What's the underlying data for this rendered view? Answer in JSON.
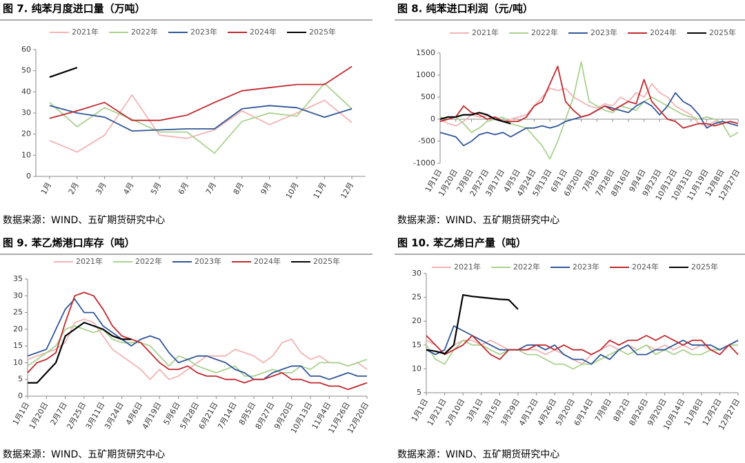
{
  "chart_data": [
    {
      "type": "line",
      "title": "图 7. 纯苯月度进口量（万吨）",
      "source": "数据来源：WIND、五矿期货研究中心",
      "categories": [
        "1月",
        "2月",
        "3月",
        "4月",
        "5月",
        "6月",
        "7月",
        "8月",
        "9月",
        "10月",
        "11月",
        "12月"
      ],
      "ylim": [
        0,
        60
      ],
      "yticks": [
        0,
        10,
        20,
        30,
        40,
        50,
        60
      ],
      "grid": false,
      "legend": "top",
      "series": [
        {
          "name": "2021年",
          "color": "#f4b2b2",
          "values": [
            17,
            11.5,
            19.5,
            38.5,
            19.5,
            18,
            22,
            31,
            24.5,
            30,
            36,
            25.5
          ]
        },
        {
          "name": "2022年",
          "color": "#a9d18e",
          "values": [
            35,
            23.5,
            32.5,
            27,
            21,
            21,
            11,
            26,
            30,
            28.5,
            44,
            32
          ]
        },
        {
          "name": "2023年",
          "color": "#2f5597",
          "values": [
            33.5,
            30,
            28,
            21.5,
            22,
            22.5,
            22.5,
            32,
            33.5,
            32.5,
            28,
            32
          ]
        },
        {
          "name": "2024年",
          "color": "#c0282d",
          "values": [
            27.5,
            31,
            35,
            26.5,
            26.5,
            29,
            35,
            40.5,
            42,
            43.5,
            43.5,
            52
          ]
        },
        {
          "name": "2025年",
          "color": "#000000",
          "values": [
            47,
            51.5,
            null,
            null,
            null,
            null,
            null,
            null,
            null,
            null,
            null,
            null
          ]
        }
      ]
    },
    {
      "type": "line",
      "title": "图 8.  纯苯进口利润（元/吨）",
      "source": "数据来源：WIND、五矿期货研究中心",
      "categories": [
        "1月1日",
        null,
        "1月20日",
        null,
        "2月8日",
        null,
        "2月27日",
        null,
        "3月17日",
        null,
        "4月5日",
        null,
        "4月24日",
        null,
        "5月13日",
        null,
        "6月1日",
        null,
        "6月20日",
        null,
        "7月9日",
        null,
        "7月28日",
        null,
        "8月16日",
        null,
        "9月4日",
        null,
        "9月23日",
        null,
        "10月12日",
        null,
        "10月31日",
        null,
        "11月19日",
        null,
        "12月8日",
        null,
        "12月27日"
      ],
      "ylim": [
        -1000,
        1500
      ],
      "yticks": [
        -1000,
        -500,
        0,
        500,
        1000,
        1500
      ],
      "grid": false,
      "legend": "top",
      "series": [
        {
          "name": "2021年",
          "color": "#f4b2b2",
          "values": [
            0,
            -100,
            -150,
            -50,
            100,
            50,
            80,
            0,
            -50,
            0,
            50,
            100,
            300,
            500,
            700,
            650,
            700,
            500,
            400,
            300,
            250,
            350,
            300,
            500,
            400,
            600,
            500,
            800,
            600,
            500,
            300,
            200,
            100,
            -100,
            -150,
            -50,
            -100,
            -50,
            -100
          ]
        },
        {
          "name": "2022年",
          "color": "#a9d18e",
          "values": [
            50,
            0,
            50,
            -100,
            -300,
            -200,
            -50,
            0,
            50,
            -100,
            -150,
            -200,
            -400,
            -600,
            -900,
            -500,
            0,
            500,
            1300,
            400,
            300,
            200,
            150,
            300,
            250,
            200,
            400,
            500,
            400,
            300,
            200,
            100,
            50,
            0,
            50,
            0,
            -100,
            -400,
            -300
          ]
        },
        {
          "name": "2023年",
          "color": "#2f5597",
          "values": [
            -300,
            -350,
            -400,
            -600,
            -500,
            -350,
            -300,
            -350,
            -300,
            -400,
            -300,
            -200,
            -200,
            -150,
            -200,
            -150,
            -50,
            0,
            50,
            100,
            200,
            300,
            250,
            200,
            150,
            300,
            400,
            300,
            100,
            300,
            600,
            400,
            300,
            100,
            -200,
            -100,
            -50,
            -100,
            -150
          ]
        },
        {
          "name": "2024年",
          "color": "#c0282d",
          "values": [
            -50,
            0,
            50,
            300,
            150,
            100,
            0,
            50,
            -50,
            -50,
            -50,
            50,
            300,
            400,
            800,
            1200,
            400,
            200,
            50,
            100,
            200,
            300,
            200,
            300,
            400,
            350,
            900,
            400,
            200,
            0,
            -50,
            -200,
            -150,
            -100,
            -100,
            -150,
            -100,
            -50,
            -100
          ]
        },
        {
          "name": "2025年",
          "color": "#000000",
          "values": [
            0,
            50,
            50,
            100,
            100,
            150,
            100,
            0,
            -50,
            -100,
            null,
            null,
            null,
            null,
            null,
            null,
            null,
            null,
            null,
            null,
            null,
            null,
            null,
            null,
            null,
            null,
            null,
            null,
            null,
            null,
            null,
            null,
            null,
            null,
            null,
            null,
            null,
            null,
            null
          ]
        }
      ]
    },
    {
      "type": "line",
      "title": "图 9. 苯乙烯港口库存（吨）",
      "source": "数据来源：WIND、五矿期货研究中心",
      "categories": [
        "1月1日",
        null,
        "1月20日",
        null,
        "2月7日",
        null,
        "2月25日",
        null,
        "3月11日",
        null,
        "3月24日",
        null,
        "4月6日",
        null,
        "4月19日",
        null,
        "5月6日",
        null,
        "5月28日",
        null,
        "6月21日",
        null,
        "7月14日",
        null,
        "8月5日",
        null,
        "8月27日",
        null,
        "9月20日",
        null,
        "10月13日",
        null,
        "11月4日",
        null,
        "11月26日",
        null,
        "12月20日"
      ],
      "ylim": [
        0,
        35
      ],
      "yticks": [
        0,
        5,
        10,
        15,
        20,
        25,
        30,
        35
      ],
      "grid": false,
      "legend": "top",
      "series": [
        {
          "name": "2021年",
          "color": "#f4b2b2",
          "values": [
            11,
            12,
            13,
            14,
            16,
            22,
            23,
            22,
            18,
            14,
            12,
            10,
            8,
            5,
            8,
            5,
            6,
            8,
            10,
            12,
            12,
            12,
            14,
            13,
            12,
            10,
            12,
            16,
            17,
            13,
            11,
            12,
            10,
            10,
            9,
            10,
            8
          ]
        },
        {
          "name": "2022年",
          "color": "#a9d18e",
          "values": [
            9,
            11,
            13,
            15,
            20,
            21,
            20,
            19,
            20,
            17,
            16,
            16,
            16,
            15,
            12,
            9,
            12,
            11,
            9,
            8,
            7,
            8,
            9,
            6,
            6,
            7,
            8,
            7,
            7,
            9,
            8,
            10,
            10,
            10,
            9,
            10,
            11
          ]
        },
        {
          "name": "2023年",
          "color": "#2f5597",
          "values": [
            12,
            13,
            14,
            20,
            26,
            29,
            25,
            25,
            21,
            19,
            17,
            15,
            17,
            18,
            17,
            13,
            10,
            11,
            12,
            12,
            11,
            10,
            8,
            7,
            5,
            5,
            7,
            8,
            9,
            9,
            6,
            6,
            5,
            6,
            7,
            6,
            6
          ]
        },
        {
          "name": "2024年",
          "color": "#c0282d",
          "values": [
            7,
            10,
            11,
            13,
            22,
            30,
            31,
            30,
            26,
            21,
            18,
            17,
            16,
            13,
            10,
            8,
            8,
            9,
            7,
            6,
            6,
            5,
            5,
            4,
            5,
            5,
            6,
            7,
            5,
            5,
            4,
            4,
            3,
            3,
            2,
            3,
            4
          ]
        },
        {
          "name": "2025年",
          "color": "#000000",
          "values": [
            4,
            4,
            7,
            10,
            18,
            20,
            22,
            21,
            20,
            18,
            17,
            17,
            null,
            null,
            null,
            null,
            null,
            null,
            null,
            null,
            null,
            null,
            null,
            null,
            null,
            null,
            null,
            null,
            null,
            null,
            null,
            null,
            null,
            null,
            null,
            null,
            null
          ]
        }
      ]
    },
    {
      "type": "line",
      "title": "图 10.  苯乙烯日产量（吨）",
      "source": "数据来源：WIND、五矿期货研究中心",
      "categories": [
        "1月1日",
        null,
        "1月21日",
        null,
        "2月10日",
        null,
        "3月1日",
        null,
        "3月15日",
        null,
        "3月29日",
        null,
        "4月12日",
        null,
        "4月26日",
        null,
        "5月20日",
        null,
        "6月14日",
        null,
        "7月8日",
        null,
        "8月2日",
        null,
        "8月26日",
        null,
        "9月20日",
        null,
        "10月14日",
        null,
        "11月8日",
        null,
        "12月2日",
        null,
        "12月27日"
      ],
      "ylim": [
        5,
        30
      ],
      "yticks": [
        5,
        10,
        15,
        20,
        25,
        30
      ],
      "grid": false,
      "legend": "top",
      "series": [
        {
          "name": "2021年",
          "color": "#f4b2b2",
          "values": [
            16,
            15,
            13,
            15,
            16,
            16,
            15,
            16,
            15,
            14,
            14,
            14,
            14,
            13,
            14,
            13,
            12,
            11,
            13,
            14,
            15,
            14,
            15,
            14,
            15,
            14,
            15,
            14,
            15,
            14,
            15,
            14,
            14,
            15,
            16
          ]
        },
        {
          "name": "2022年",
          "color": "#a9d18e",
          "values": [
            15,
            12,
            11,
            14,
            16,
            15,
            15,
            14,
            13,
            14,
            14,
            13,
            13,
            12,
            11,
            11,
            10,
            11,
            11,
            12,
            13,
            14,
            13,
            14,
            15,
            13,
            14,
            13,
            14,
            13,
            13,
            14,
            14,
            15,
            15
          ]
        },
        {
          "name": "2023年",
          "color": "#2f5597",
          "values": [
            14,
            13,
            14,
            19,
            18,
            17,
            16,
            15,
            14,
            14,
            14,
            15,
            15,
            14,
            15,
            13,
            12,
            12,
            11,
            13,
            12,
            14,
            15,
            13,
            13,
            14,
            14,
            15,
            16,
            15,
            15,
            15,
            14,
            15,
            16
          ]
        },
        {
          "name": "2024年",
          "color": "#c0282d",
          "values": [
            17,
            15,
            13,
            14,
            15,
            17,
            15,
            13,
            12,
            14,
            14,
            14,
            15,
            15,
            14,
            15,
            14,
            14,
            13,
            14,
            16,
            15,
            16,
            16,
            17,
            16,
            17,
            16,
            15,
            16,
            16,
            14,
            13,
            15,
            13
          ]
        },
        {
          "name": "2025年",
          "color": "#000000",
          "values": [
            14,
            13.7,
            13.2,
            15,
            25.5,
            25.2,
            25,
            24.8,
            24.6,
            24.5,
            22.5,
            null,
            null,
            null,
            null,
            null,
            null,
            null,
            null,
            null,
            null,
            null,
            null,
            null,
            null,
            null,
            null,
            null,
            null,
            null,
            null,
            null,
            null,
            null,
            null
          ]
        }
      ]
    }
  ]
}
